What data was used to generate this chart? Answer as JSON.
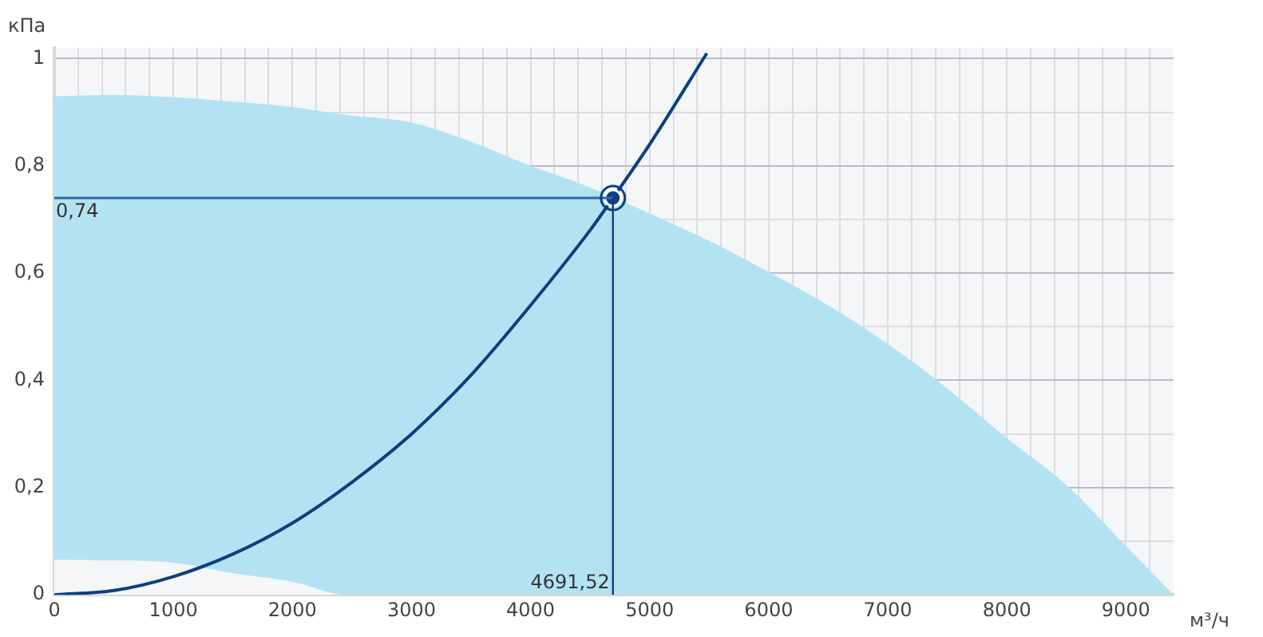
{
  "chart_data": {
    "type": "area",
    "xlabel": "м³/ч",
    "ylabel": "кПа",
    "xlim": [
      0,
      9400
    ],
    "ylim": [
      0,
      1.02
    ],
    "xticks": [
      0,
      {
        "value": 200,
        "label": null
      },
      {
        "value": 400,
        "label": null
      },
      {
        "value": 600,
        "label": null
      },
      {
        "value": 800,
        "label": null
      },
      1000,
      {
        "value": 1200,
        "label": null
      },
      {
        "value": 1400,
        "label": null
      },
      {
        "value": 1600,
        "label": null
      },
      {
        "value": 1800,
        "label": null
      },
      2000,
      {
        "value": 2200,
        "label": null
      },
      {
        "value": 2400,
        "label": null
      },
      {
        "value": 2600,
        "label": null
      },
      {
        "value": 2800,
        "label": null
      },
      3000,
      {
        "value": 3200,
        "label": null
      },
      {
        "value": 3400,
        "label": null
      },
      {
        "value": 3600,
        "label": null
      },
      {
        "value": 3800,
        "label": null
      },
      4000,
      {
        "value": 4200,
        "label": null
      },
      {
        "value": 4400,
        "label": null
      },
      {
        "value": 4600,
        "label": null
      },
      {
        "value": 4800,
        "label": null
      },
      5000,
      {
        "value": 5200,
        "label": null
      },
      {
        "value": 5400,
        "label": null
      },
      {
        "value": 5600,
        "label": null
      },
      {
        "value": 5800,
        "label": null
      },
      6000,
      {
        "value": 6200,
        "label": null
      },
      {
        "value": 6400,
        "label": null
      },
      {
        "value": 6600,
        "label": null
      },
      {
        "value": 6800,
        "label": null
      },
      7000,
      {
        "value": 7200,
        "label": null
      },
      {
        "value": 7400,
        "label": null
      },
      {
        "value": 7600,
        "label": null
      },
      {
        "value": 7800,
        "label": null
      },
      8000,
      {
        "value": 8200,
        "label": null
      },
      {
        "value": 8400,
        "label": null
      },
      {
        "value": 8600,
        "label": null
      },
      {
        "value": 8800,
        "label": null
      },
      9000,
      {
        "value": 9200,
        "label": null
      }
    ],
    "yticks": [
      0,
      {
        "value": 0.1,
        "label": null
      },
      {
        "value": 0.2,
        "label": "0,2"
      },
      {
        "value": 0.3,
        "label": null
      },
      {
        "value": 0.4,
        "label": "0,4"
      },
      {
        "value": 0.5,
        "label": null
      },
      {
        "value": 0.6,
        "label": "0,6"
      },
      {
        "value": 0.7,
        "label": null
      },
      {
        "value": 0.8,
        "label": "0,8"
      },
      {
        "value": 0.9,
        "label": null
      },
      1
    ],
    "grid": true,
    "legend": false,
    "marker": "none",
    "series": [
      {
        "type": "area",
        "color": "#b3e3f2",
        "x": [
          0,
          500,
          1000,
          1500,
          2000,
          2450,
          3000,
          3500,
          4000,
          4500,
          5000,
          5500,
          6000,
          6500,
          7000,
          7500,
          8000,
          8500,
          9000,
          9400
        ],
        "values": [
          0.93,
          0.932,
          0.928,
          0.92,
          0.91,
          0.895,
          0.881,
          0.845,
          0.8,
          0.76,
          0.711,
          0.66,
          0.602,
          0.54,
          0.468,
          0.385,
          0.292,
          0.205,
          0.091,
          0
        ]
      },
      {
        "type": "area",
        "color": "#f5f6f8",
        "x": [
          0,
          500,
          1000,
          1500,
          2000,
          2450,
          3000,
          3500,
          4000,
          4500,
          5000,
          5500,
          6000,
          6500,
          7000,
          7500,
          8000,
          8500,
          9000,
          9400
        ],
        "values": [
          0.065,
          0.064,
          0.06,
          0.04,
          0.024,
          0,
          0,
          0,
          0,
          0,
          0,
          0,
          0,
          0,
          0,
          0,
          0,
          0,
          0,
          0
        ]
      },
      {
        "type": "line",
        "color": "#0e3f7e",
        "x": [
          0,
          500,
          1000,
          1500,
          2000,
          2500,
          3000,
          3500,
          4000,
          4500,
          4691.52,
          5000,
          5480
        ],
        "values": [
          0,
          0.008,
          0.034,
          0.076,
          0.134,
          0.21,
          0.3,
          0.41,
          0.54,
          0.68,
          0.74,
          0.84,
          1.01
        ]
      },
      {
        "type": "scatter",
        "color": "#0e3f7e",
        "marker": "circle",
        "x": [
          4691.52
        ],
        "values": [
          0.74
        ]
      }
    ],
    "ref_lines": [
      {
        "axis": "y",
        "value": 0.74,
        "label": "0,74",
        "color": "#2f6aa3"
      },
      {
        "axis": "x",
        "value": 4691.52,
        "label": "4691,52",
        "color": "#0e3f7e"
      }
    ]
  }
}
